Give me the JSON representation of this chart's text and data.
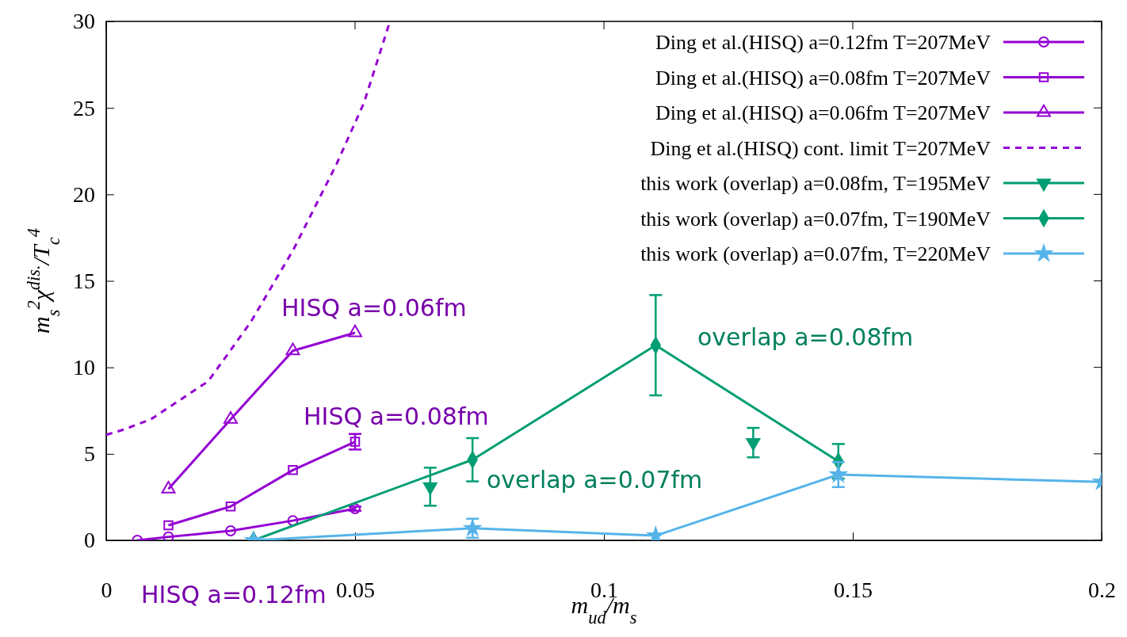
{
  "chart_data": {
    "type": "line",
    "xlabel": "m$_{ud}$/m$_{s}$",
    "ylabel": "m$_{s}$$^{2}$χ$^{dis.}$/T$_{c}$$^{4}$",
    "xlim": [
      0,
      0.2
    ],
    "xticks": [
      0,
      0.05,
      0.1,
      0.15,
      0.2
    ],
    "ylim": [
      0,
      30
    ],
    "yticks": [
      0,
      5,
      10,
      15,
      20,
      25,
      30
    ],
    "grid": false,
    "legend": "top right",
    "series": [
      {
        "name": "Ding et al.(HISQ) a=0.12fm T=207MeV",
        "color": "#9400d3",
        "marker": "circle",
        "x": [
          0.00625,
          0.0125,
          0.025,
          0.0375,
          0.05
        ],
        "values": [
          0,
          0.2,
          0.55,
          1.14,
          1.83
        ],
        "errors": [
          null,
          null,
          null,
          null,
          0.12
        ]
      },
      {
        "name": "Ding et al.(HISQ) a=0.08fm T=207MeV",
        "color": "#9400d3",
        "marker": "square",
        "x": [
          0.0125,
          0.025,
          0.0375,
          0.05
        ],
        "values": [
          0.87,
          1.96,
          4.06,
          5.7
        ],
        "errors": [
          null,
          null,
          null,
          0.45
        ]
      },
      {
        "name": "Ding et al.(HISQ) a=0.06fm T=207MeV",
        "color": "#9400d3",
        "marker": "triangle",
        "x": [
          0.0125,
          0.025,
          0.0375,
          0.05
        ],
        "values": [
          2.97,
          7.0,
          10.96,
          12.0
        ],
        "errors": [
          null,
          null,
          null,
          null
        ]
      },
      {
        "name": "Ding et al.(HISQ) cont. limit T=207MeV",
        "color": "#9400d3",
        "marker": "none",
        "line_style": "dashed",
        "x": [
          0,
          0.0035,
          0.009,
          0.0205,
          0.029,
          0.0376,
          0.0462,
          0.0518,
          0.0569
        ],
        "values": [
          6.1,
          6.4,
          7.0,
          9.2,
          12.6,
          16.8,
          21.7,
          25.3,
          29.9
        ]
      },
      {
        "name": "this work (overlap) a=0.08fm, T=195MeV",
        "type": "scatter",
        "color": "#009e73",
        "marker": "triangle-down",
        "x": [
          0.0651,
          0.13
        ],
        "values": [
          3.1,
          5.65
        ],
        "errors": [
          1.1,
          0.85
        ]
      },
      {
        "name": "this work (overlap) a=0.07fm, T=190MeV",
        "color": "#009e73",
        "marker": "diamond",
        "x": [
          0.0296,
          0.0736,
          0.1104,
          0.1471
        ],
        "values": [
          0,
          4.66,
          11.28,
          4.57
        ],
        "errors": [
          null,
          1.25,
          2.9,
          1.0
        ]
      },
      {
        "name": "this work (overlap) a=0.07fm, T=220MeV",
        "color": "#56b4e9",
        "marker": "star",
        "x": [
          0.0296,
          0.0736,
          0.1104,
          0.1471,
          0.2
        ],
        "values": [
          0,
          0.7,
          0.27,
          3.8,
          3.38
        ],
        "errors": [
          null,
          0.55,
          null,
          0.72,
          null
        ]
      }
    ],
    "annotations": [
      "HISQ a=0.06fm",
      "HISQ a=0.08fm",
      "HISQ a=0.12fm",
      "overlap a=0.08fm",
      "overlap a=0.07fm"
    ]
  }
}
